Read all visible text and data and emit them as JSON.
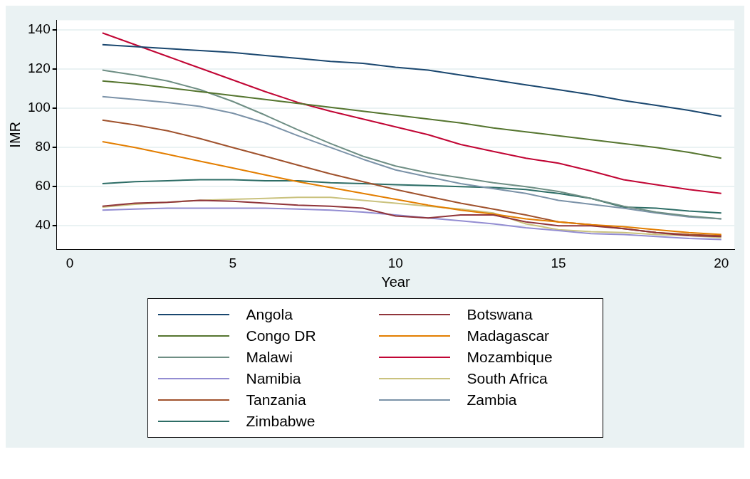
{
  "chart_data": {
    "type": "line",
    "xlabel": "Year",
    "ylabel": "IMR",
    "x": [
      1,
      2,
      3,
      4,
      5,
      6,
      7,
      8,
      9,
      10,
      11,
      12,
      13,
      14,
      15,
      16,
      17,
      18,
      19,
      20
    ],
    "xlim": [
      -0.4,
      20.4
    ],
    "xticks": [
      0,
      5,
      10,
      15,
      20
    ],
    "ylim": [
      28,
      145
    ],
    "yticks": [
      40,
      60,
      80,
      100,
      120,
      140
    ],
    "grid": "y",
    "legend": "bottom",
    "marker": "none",
    "line_style": "solid",
    "series": [
      {
        "name": "Angola",
        "color": "#1a476f",
        "values": [
          132.5,
          131.5,
          130.5,
          129.5,
          128.5,
          127,
          125.5,
          124,
          123,
          121,
          119.5,
          117,
          114.5,
          112,
          109.5,
          107,
          104,
          101.5,
          99,
          96
        ]
      },
      {
        "name": "Botswana",
        "color": "#90353b",
        "values": [
          50,
          51.5,
          52,
          53,
          52.5,
          51.5,
          50.5,
          50,
          49,
          45,
          44,
          45.5,
          45.5,
          42,
          40,
          40,
          38.5,
          36.5,
          35,
          34.5
        ]
      },
      {
        "name": "Congo DR",
        "color": "#55752f",
        "values": [
          114,
          112.5,
          110.5,
          108.5,
          106.5,
          104.5,
          102.5,
          100.5,
          98.5,
          96.5,
          94.5,
          92.5,
          90,
          88,
          86,
          84,
          82,
          80,
          77.5,
          74.5
        ]
      },
      {
        "name": "Madagascar",
        "color": "#e37e00",
        "values": [
          83,
          80,
          76.5,
          73,
          69.5,
          66,
          62.5,
          59.5,
          56.5,
          53.5,
          50.5,
          48,
          46,
          43.5,
          42,
          40.5,
          39.5,
          38,
          36.5,
          35.5
        ]
      },
      {
        "name": "Malawi",
        "color": "#6e8e84",
        "values": [
          119.5,
          117,
          114,
          109.5,
          103.5,
          96.5,
          89,
          82,
          75.5,
          70.5,
          67,
          64.5,
          62,
          60,
          57.5,
          54,
          50,
          47,
          45,
          43.5
        ]
      },
      {
        "name": "Mozambique",
        "color": "#c10534",
        "values": [
          138.5,
          132.5,
          126.5,
          120.5,
          114.5,
          108.5,
          103,
          98.5,
          94.5,
          90.5,
          86.5,
          81.5,
          78,
          74.5,
          72,
          68,
          63.5,
          61,
          58.5,
          56.5
        ]
      },
      {
        "name": "Namibia",
        "color": "#938dd2",
        "values": [
          48,
          48.5,
          49,
          49,
          49,
          49,
          48.5,
          48,
          47,
          45.5,
          44,
          42.5,
          41,
          39,
          37.5,
          36,
          35.5,
          34.5,
          33.5,
          33
        ]
      },
      {
        "name": "South Africa",
        "color": "#cac27e",
        "values": [
          49.5,
          51,
          52,
          53,
          53.5,
          54,
          54.5,
          54.5,
          53,
          51.5,
          50,
          48.5,
          46.5,
          41,
          38,
          37,
          36.5,
          35.5,
          35,
          34
        ]
      },
      {
        "name": "Tanzania",
        "color": "#a0522d",
        "values": [
          94,
          91.5,
          88.5,
          84.5,
          80,
          75.5,
          71,
          66.5,
          62.5,
          58.5,
          55,
          51.5,
          48.5,
          45.5,
          42,
          40.5,
          38.5,
          36.5,
          35.5,
          35
        ]
      },
      {
        "name": "Zambia",
        "color": "#7b92a8",
        "values": [
          106,
          104.5,
          103,
          101,
          97.5,
          92.5,
          86,
          80,
          74,
          68.5,
          65,
          61.5,
          59,
          56.5,
          53,
          51,
          49,
          46.5,
          44.5,
          43.5
        ]
      },
      {
        "name": "Zimbabwe",
        "color": "#2d6d66",
        "values": [
          61.5,
          62.5,
          63,
          63.5,
          63.5,
          63,
          63,
          62,
          61.5,
          61,
          60.5,
          60,
          59.5,
          58.5,
          56.5,
          54,
          49.5,
          49,
          47.5,
          46.5
        ]
      }
    ]
  }
}
